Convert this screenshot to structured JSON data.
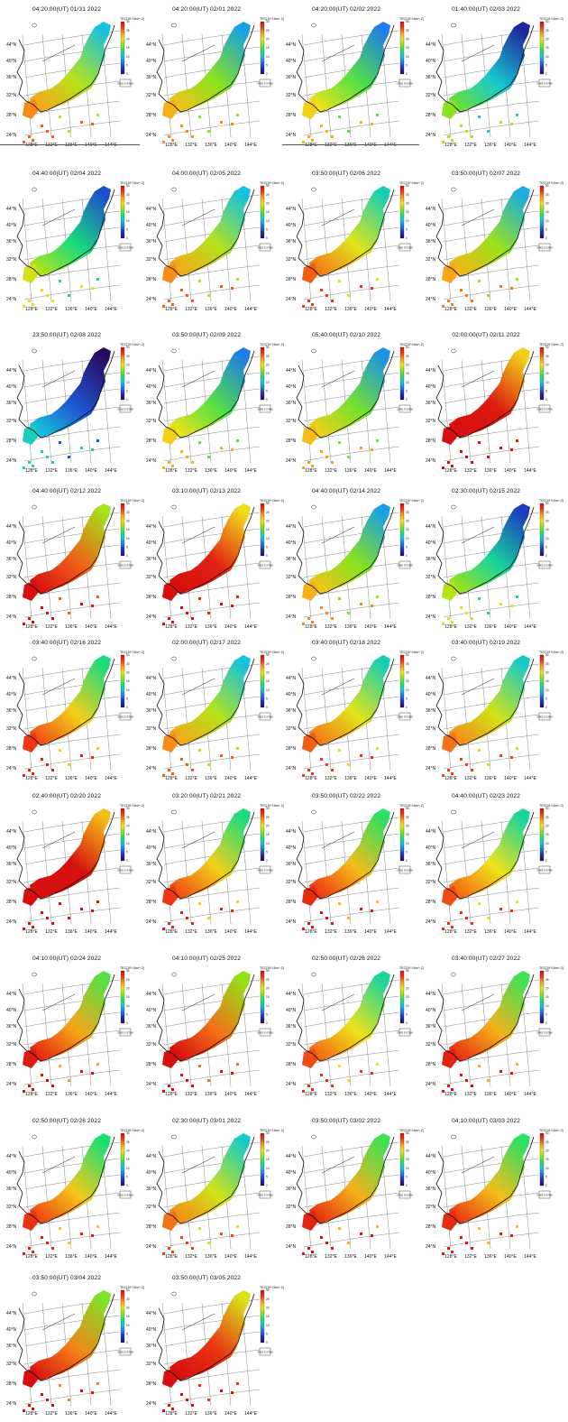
{
  "colorbar": {
    "unit": "TEC[10^16m^-2]",
    "ticks": [
      "0",
      "5",
      "10",
      "15",
      "20",
      "25",
      "30"
    ],
    "colors": [
      "#2a0a5e",
      "#1b2fb6",
      "#1f78e8",
      "#16c4e0",
      "#1be06e",
      "#8ee21a",
      "#f0e41a",
      "#f7a01a",
      "#ee3b14",
      "#d60f0f"
    ]
  },
  "legend_label": "GRES SYSTEM",
  "axes": {
    "lat_ticks": [
      "44°N",
      "40°N",
      "36°N",
      "32°N",
      "28°N",
      "24°N"
    ],
    "lon_ticks": [
      "128°E",
      "132°E",
      "136°E",
      "140°E",
      "144°E"
    ]
  },
  "panels": [
    {
      "title": "04:20:00(UT) 01/31 2022",
      "level": 0.55
    },
    {
      "title": "04:20:00(UT) 02/01 2022",
      "level": 0.5
    },
    {
      "title": "04:20:00(UT) 02/02 2022",
      "level": 0.45
    },
    {
      "title": "01:40:00(UT) 02/03 2022",
      "level": 0.3
    },
    {
      "title": "04:40:00(UT) 02/04 2022",
      "level": 0.38
    },
    {
      "title": "04:00:00(UT) 02/05 2022",
      "level": 0.55
    },
    {
      "title": "03:50:00(UT) 02/06 2022",
      "level": 0.6
    },
    {
      "title": "03:50:00(UT) 02/07 2022",
      "level": 0.52
    },
    {
      "title": "23:50:00(UT) 02/08 2022",
      "level": 0.12
    },
    {
      "title": "03:50:00(UT) 02/09 2022",
      "level": 0.45
    },
    {
      "title": "05:40:00(UT) 02/10 2022",
      "level": 0.48
    },
    {
      "title": "02:00:00(UT) 02/11 2022",
      "level": 0.92
    },
    {
      "title": "04:40:00(UT) 02/12 2022",
      "level": 0.8
    },
    {
      "title": "03:10:00(UT) 02/13 2022",
      "level": 0.9
    },
    {
      "title": "04:40:00(UT) 02/14 2022",
      "level": 0.5
    },
    {
      "title": "02:30:00(UT) 02/15 2022",
      "level": 0.35
    },
    {
      "title": "03:40:00(UT) 02/16 2022",
      "level": 0.65
    },
    {
      "title": "02:00:00(UT) 02/17 2022",
      "level": 0.55
    },
    {
      "title": "03:40:00(UT) 02/18 2022",
      "level": 0.6
    },
    {
      "title": "03:40:00(UT) 02/19 2022",
      "level": 0.58
    },
    {
      "title": "02:40:00(UT) 02/20 2022",
      "level": 0.95
    },
    {
      "title": "03:20:00(UT) 02/21 2022",
      "level": 0.65
    },
    {
      "title": "03:50:00(UT) 02/22 2022",
      "level": 0.68
    },
    {
      "title": "04:40:00(UT) 02/23 2022",
      "level": 0.62
    },
    {
      "title": "04:10:00(UT) 02/24 2022",
      "level": 0.72
    },
    {
      "title": "04:10:00(UT) 02/25 2022",
      "level": 0.78
    },
    {
      "title": "02:50:00(UT) 02/26 2022",
      "level": 0.62
    },
    {
      "title": "03:40:00(UT) 02/27 2022",
      "level": 0.7
    },
    {
      "title": "02:50:00(UT) 02/28 2022",
      "level": 0.66
    },
    {
      "title": "02:30:00(UT) 03/01 2022",
      "level": 0.58
    },
    {
      "title": "03:50:00(UT) 03/02 2022",
      "level": 0.7
    },
    {
      "title": "04:10:00(UT) 03/03 2022",
      "level": 0.68
    },
    {
      "title": "03:50:00(UT) 03/04 2022",
      "level": 0.76
    },
    {
      "title": "03:50:00(UT) 03/05 2022",
      "level": 0.86
    }
  ]
}
